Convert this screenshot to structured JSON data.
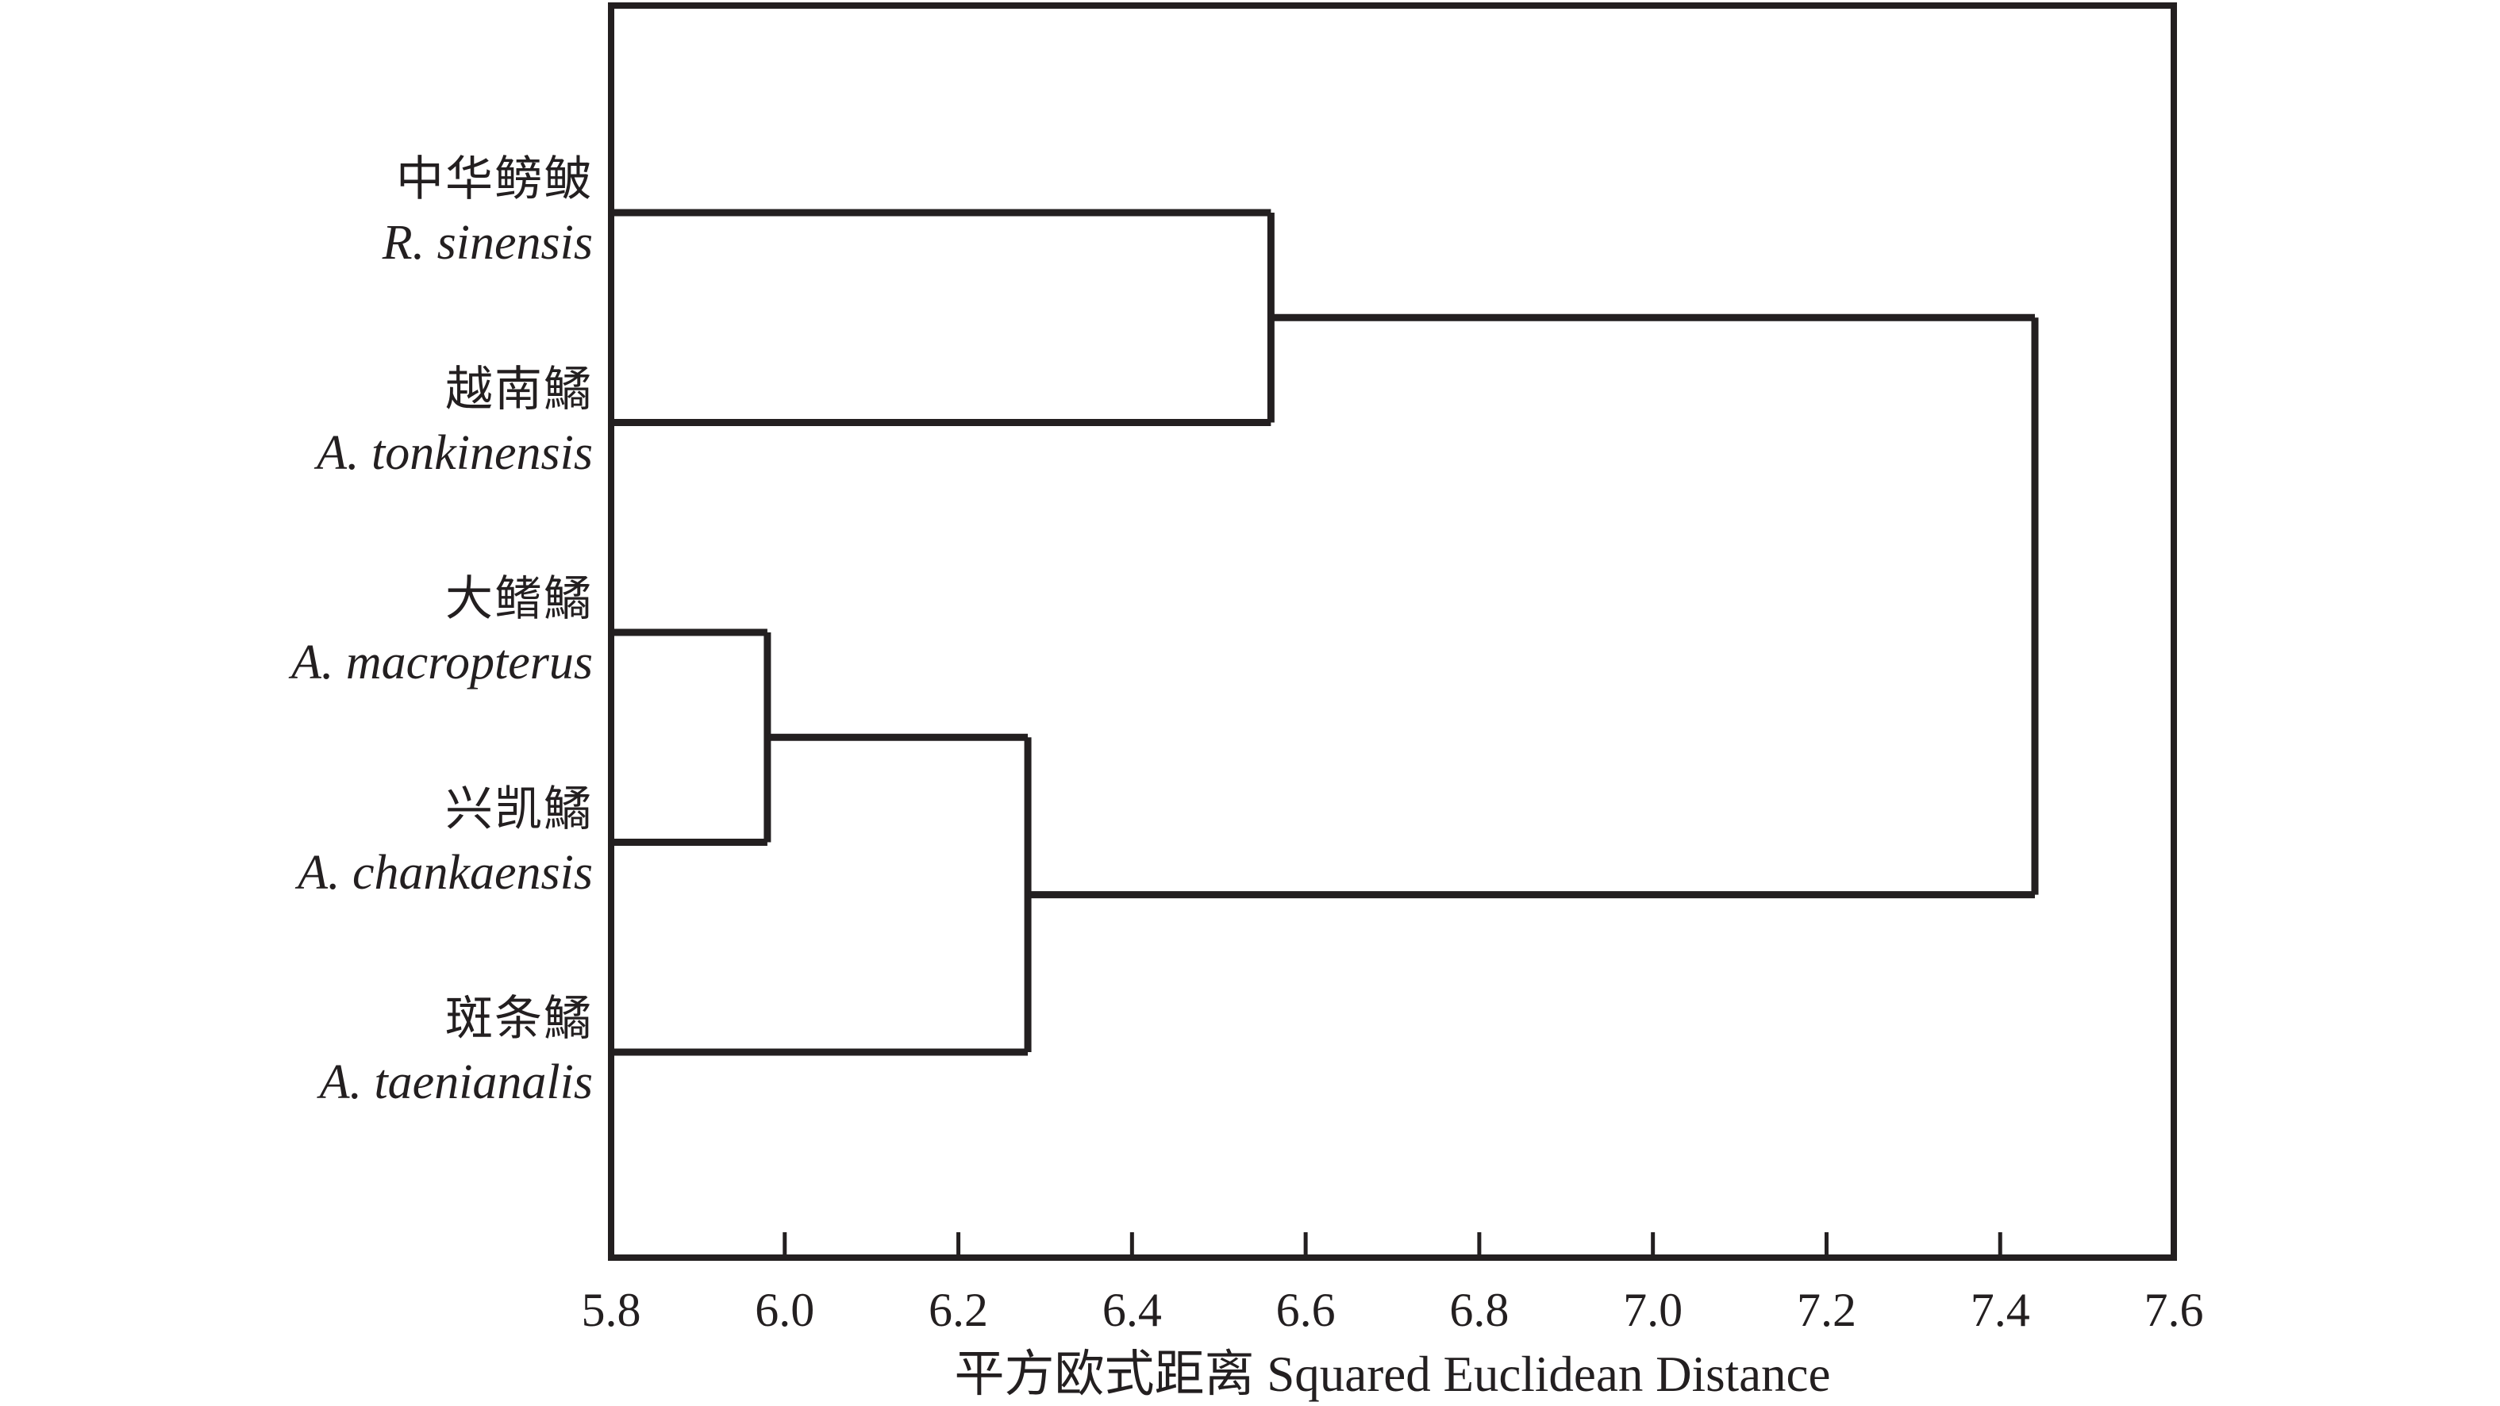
{
  "figure": {
    "background_color": "#ffffff",
    "line_color": "#231f20",
    "text_color": "#231f20"
  },
  "chart_data": {
    "type": "dendrogram",
    "orientation": "horizontal",
    "xlabel": "平方欧式距离 Squared Euclidean Distance",
    "xlim": [
      5.8,
      7.6
    ],
    "x_ticks": [
      5.8,
      6.0,
      6.2,
      6.4,
      6.6,
      6.8,
      7.0,
      7.2,
      7.4,
      7.6
    ],
    "x_tick_labels": [
      "5.8",
      "6.0",
      "6.2",
      "6.4",
      "6.6",
      "6.8",
      "7.0",
      "7.2",
      "7.4",
      "7.6"
    ],
    "grid": false,
    "legend": "none",
    "leaves": [
      {
        "label_cn": "中华鳑鲏",
        "label_latin": "R. sinensis"
      },
      {
        "label_cn": "越南鱊",
        "label_latin": "A. tonkinensis"
      },
      {
        "label_cn": "大鳍鱊",
        "label_latin": "A. macropterus"
      },
      {
        "label_cn": "兴凯鱊",
        "label_latin": "A. chankaensis"
      },
      {
        "label_cn": "斑条鱊",
        "label_latin": "A. taenianalis"
      }
    ],
    "merges": [
      {
        "a": "leaf:2",
        "b": "leaf:3",
        "distance": 5.98
      },
      {
        "a": "merge:0",
        "b": "leaf:4",
        "distance": 6.28
      },
      {
        "a": "leaf:0",
        "b": "leaf:1",
        "distance": 6.56
      },
      {
        "a": "merge:2",
        "b": "merge:1",
        "distance": 7.44
      }
    ]
  }
}
